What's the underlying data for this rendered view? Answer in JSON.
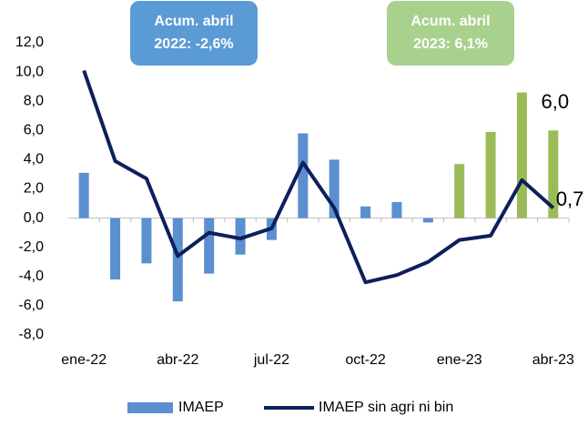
{
  "chart_data": {
    "type": "bar_line",
    "categories": [
      "ene-22",
      null,
      null,
      "abr-22",
      null,
      null,
      "jul-22",
      null,
      null,
      "oct-22",
      null,
      null,
      "ene-23",
      null,
      null,
      "abr-23"
    ],
    "series": [
      {
        "name": "IMAEP",
        "type": "bar",
        "color": "#5b8fd0",
        "colors": [
          "#5b8fd0",
          "#5b8fd0",
          "#5b8fd0",
          "#5b8fd0",
          "#5b8fd0",
          "#5b8fd0",
          "#5b8fd0",
          "#5b8fd0",
          "#5b8fd0",
          "#5b8fd0",
          "#5b8fd0",
          "#5b8fd0",
          "#9bbb59",
          "#9bbb59",
          "#9bbb59",
          "#9bbb59"
        ],
        "values": [
          3.1,
          -4.2,
          -3.1,
          -5.7,
          -3.8,
          -2.5,
          -1.5,
          5.8,
          4.0,
          0.8,
          1.1,
          -0.3,
          3.7,
          5.9,
          8.6,
          6.0
        ],
        "value_labels": [
          null,
          null,
          null,
          null,
          null,
          null,
          null,
          null,
          null,
          null,
          null,
          null,
          null,
          null,
          null,
          "6,0"
        ]
      },
      {
        "name": "IMAEP sin agri ni bin",
        "type": "line",
        "color": "#0d1f5c",
        "values": [
          10.1,
          3.9,
          2.7,
          -2.6,
          -1.0,
          -1.4,
          -0.7,
          3.8,
          0.7,
          -4.4,
          -3.9,
          -3.0,
          -1.5,
          -1.2,
          2.6,
          0.7
        ],
        "value_labels": [
          null,
          null,
          null,
          null,
          null,
          null,
          null,
          null,
          null,
          null,
          null,
          null,
          null,
          null,
          null,
          "0,7"
        ]
      }
    ],
    "ylim": [
      -8,
      12
    ],
    "yticks": [
      {
        "value": -8,
        "label": "-8,0"
      },
      {
        "value": -6,
        "label": "-6,0"
      },
      {
        "value": -4,
        "label": "-4,0"
      },
      {
        "value": -2,
        "label": "-2,0"
      },
      {
        "value": 0,
        "label": "0,0"
      },
      {
        "value": 2,
        "label": "2,0"
      },
      {
        "value": 4,
        "label": "4,0"
      },
      {
        "value": 6,
        "label": "6,0"
      },
      {
        "value": 8,
        "label": "8,0"
      },
      {
        "value": 10,
        "label": "10,0"
      },
      {
        "value": 12,
        "label": "12,0"
      }
    ],
    "annotations": [
      {
        "lines": [
          "Acum. abril",
          "2022: -2,6%"
        ],
        "color": "#5b9bd5"
      },
      {
        "lines": [
          "Acum. abril",
          "2023: 6,1%"
        ],
        "color": "#a9d18e"
      }
    ],
    "legend": "bottom"
  }
}
